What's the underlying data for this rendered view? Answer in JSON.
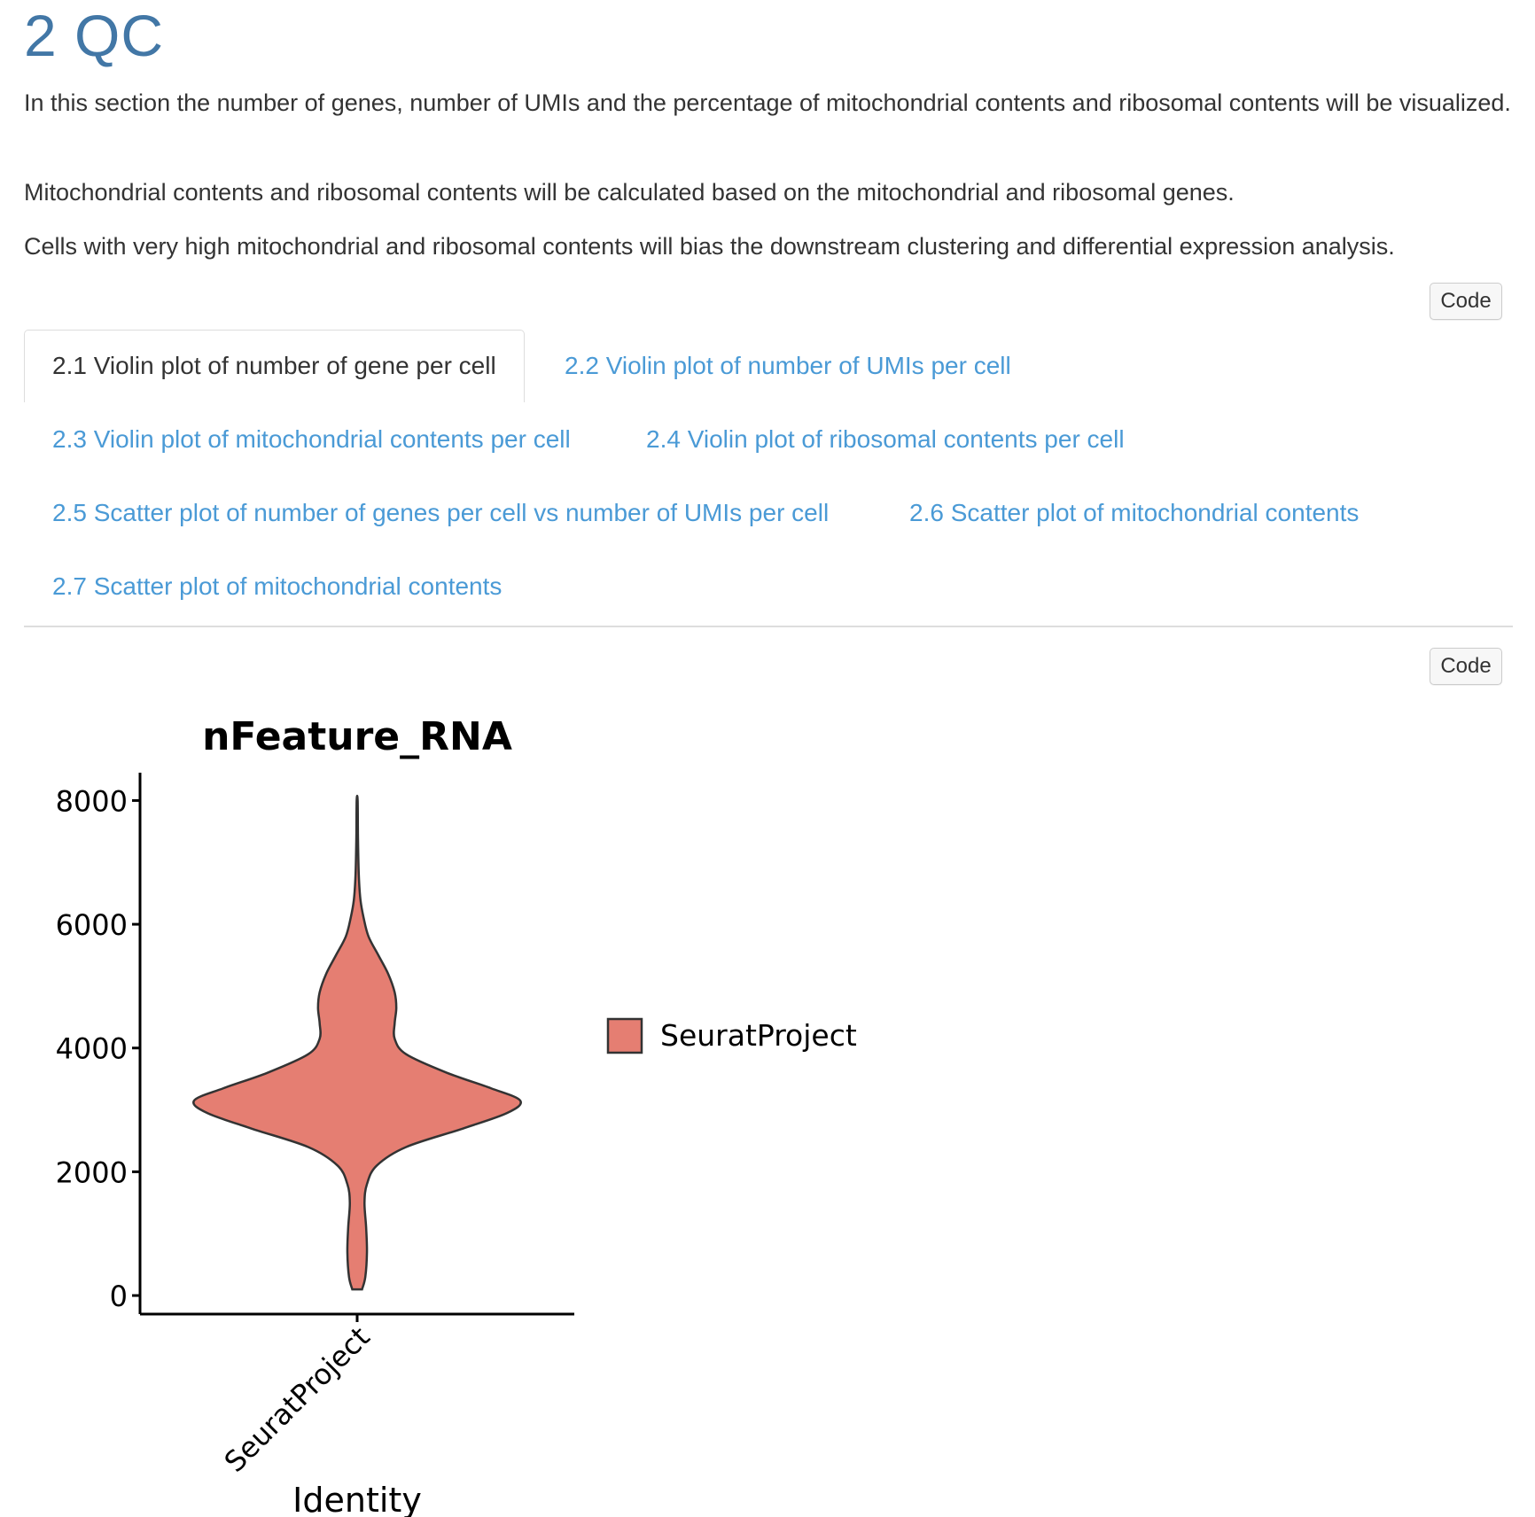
{
  "section": {
    "title": "2 QC",
    "paragraphs": [
      "In this section the number of genes, number of UMIs and the percentage of mitochondrial contents and ribosomal contents will be visualized.",
      "Mitochondrial contents and ribosomal contents will be calculated based on the mitochondrial and ribosomal genes.",
      "Cells with very high mitochondrial and ribosomal contents will bias the downstream clustering and differential expression analysis."
    ]
  },
  "code_button_label": "Code",
  "tabs": [
    {
      "label": "2.1 Violin plot of number of gene per cell",
      "active": true
    },
    {
      "label": "2.2 Violin plot of number of UMIs per cell",
      "active": false
    },
    {
      "label": "2.3 Violin plot of mitochondrial contents per cell",
      "active": false
    },
    {
      "label": "2.4 Violin plot of ribosomal contents per cell",
      "active": false
    },
    {
      "label": "2.5 Scatter plot of number of genes per cell vs number of UMIs per cell",
      "active": false
    },
    {
      "label": "2.6 Scatter plot of mitochondrial contents",
      "active": false
    },
    {
      "label": "2.7 Scatter plot of mitochondrial contents",
      "active": false
    }
  ],
  "colors": {
    "heading": "#4277a6",
    "link": "#4a9ad6",
    "violin_fill": "#e57e72",
    "violin_stroke": "#333333"
  },
  "chart_data": {
    "type": "violin",
    "title": "nFeature_RNA",
    "xlabel": "Identity",
    "ylabel": "",
    "categories": [
      "SeuratProject"
    ],
    "yticks": [
      0,
      2000,
      4000,
      6000,
      8000
    ],
    "ylim": [
      -300,
      8450
    ],
    "legend": {
      "entries": [
        "SeuratProject"
      ],
      "placement": "right"
    },
    "grid": false,
    "violin_density": [
      {
        "y": 100,
        "w": 0.03
      },
      {
        "y": 300,
        "w": 0.05
      },
      {
        "y": 700,
        "w": 0.06
      },
      {
        "y": 1100,
        "w": 0.055
      },
      {
        "y": 1500,
        "w": 0.045
      },
      {
        "y": 1800,
        "w": 0.06
      },
      {
        "y": 2100,
        "w": 0.12
      },
      {
        "y": 2400,
        "w": 0.3
      },
      {
        "y": 2700,
        "w": 0.65
      },
      {
        "y": 2950,
        "w": 0.92
      },
      {
        "y": 3150,
        "w": 1.0
      },
      {
        "y": 3350,
        "w": 0.82
      },
      {
        "y": 3600,
        "w": 0.55
      },
      {
        "y": 3900,
        "w": 0.3
      },
      {
        "y": 4150,
        "w": 0.23
      },
      {
        "y": 4400,
        "w": 0.23
      },
      {
        "y": 4650,
        "w": 0.24
      },
      {
        "y": 4900,
        "w": 0.23
      },
      {
        "y": 5200,
        "w": 0.19
      },
      {
        "y": 5500,
        "w": 0.13
      },
      {
        "y": 5800,
        "w": 0.07
      },
      {
        "y": 6100,
        "w": 0.04
      },
      {
        "y": 6400,
        "w": 0.02
      },
      {
        "y": 6800,
        "w": 0.01
      },
      {
        "y": 7400,
        "w": 0.005
      },
      {
        "y": 8000,
        "w": 0.003
      }
    ]
  }
}
